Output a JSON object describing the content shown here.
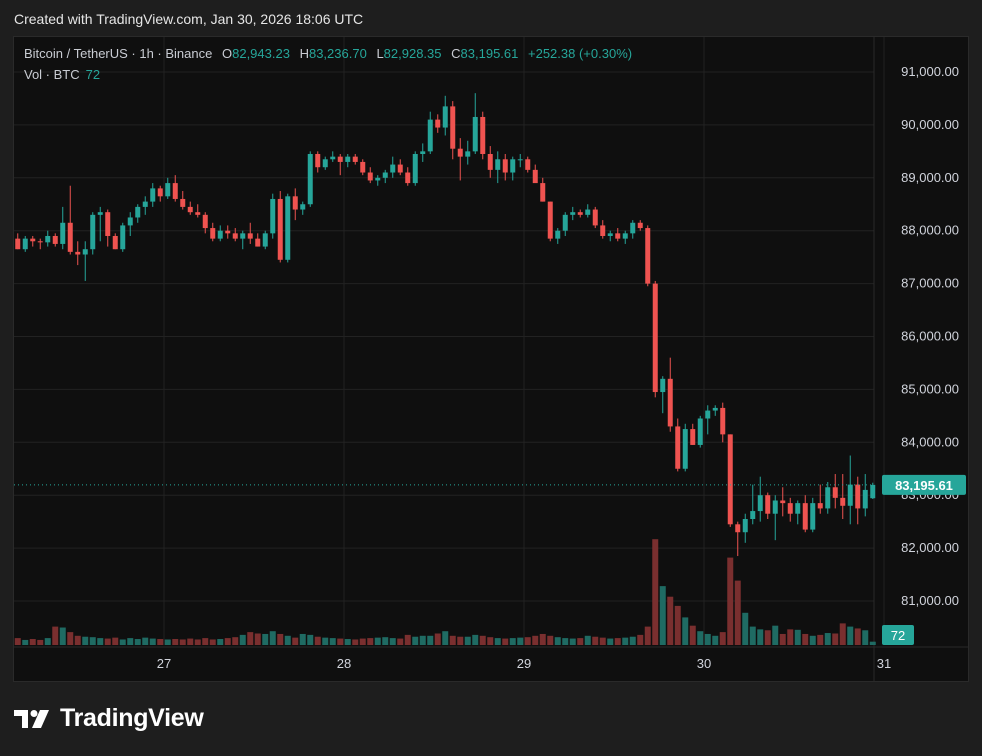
{
  "header": {
    "created_text": "Created with TradingView.com, Jan 30, 2026 18:06 UTC"
  },
  "legend": {
    "symbol": "Bitcoin / TetherUS · 1h · Binance",
    "open_key": "O",
    "open": "82,943.23",
    "high_key": "H",
    "high": "83,236.70",
    "low_key": "L",
    "low": "82,928.35",
    "close_key": "C",
    "close": "83,195.61",
    "change": "+252.38 (+0.30%)",
    "vol_label": "Vol · BTC",
    "vol_value": "72"
  },
  "colors": {
    "up": "#26a69a",
    "down": "#ef5350",
    "up_vol": "#1f6b63",
    "down_vol": "#7a2f2f",
    "grid": "#222222",
    "background": "#0f0f0f"
  },
  "brand": {
    "name": "TradingView",
    "icon": "tradingview-logo-icon"
  },
  "chart_data": {
    "type": "candlestick",
    "title": "Bitcoin / TetherUS · 1h · Binance",
    "ylabel": "",
    "xlabel": "",
    "ylim": [
      80350,
      91600
    ],
    "y_ticks": [
      "91,000.00",
      "90,000.00",
      "89,000.00",
      "88,000.00",
      "87,000.00",
      "86,000.00",
      "85,000.00",
      "84,000.00",
      "83,000.00",
      "82,000.00",
      "81,000.00"
    ],
    "y_tick_values": [
      91000,
      90000,
      89000,
      88000,
      87000,
      86000,
      85000,
      84000,
      83000,
      82000,
      81000
    ],
    "x_ticks": [
      "27",
      "28",
      "29",
      "30",
      "31"
    ],
    "x_tick_values": [
      20,
      44,
      68,
      92,
      116
    ],
    "last_price": "83,195.61",
    "last_price_value": 83195.61,
    "volume_last": "72",
    "grid": true,
    "candles_x_units": "hours since Jan 26 (approx.)",
    "candles": [
      [
        0.5,
        87850,
        87950,
        87650,
        87650,
        150
      ],
      [
        1.5,
        87650,
        87900,
        87600,
        87850,
        110
      ],
      [
        2.5,
        87850,
        87900,
        87700,
        87800,
        130
      ],
      [
        3.5,
        87800,
        87850,
        87650,
        87780,
        110
      ],
      [
        4.5,
        87780,
        88000,
        87700,
        87900,
        150
      ],
      [
        5.5,
        87900,
        87950,
        87700,
        87750,
        400
      ],
      [
        6.5,
        87750,
        88450,
        87650,
        88150,
        380
      ],
      [
        7.5,
        88150,
        88850,
        87550,
        87600,
        280
      ],
      [
        8.5,
        87600,
        87800,
        87350,
        87550,
        200
      ],
      [
        9.5,
        87550,
        87800,
        87050,
        87650,
        180
      ],
      [
        10.5,
        87650,
        88350,
        87550,
        88300,
        170
      ],
      [
        11.5,
        88300,
        88450,
        87800,
        88350,
        150
      ],
      [
        12.5,
        88350,
        88400,
        87700,
        87900,
        140
      ],
      [
        13.5,
        87900,
        87950,
        87650,
        87650,
        160
      ],
      [
        14.5,
        87650,
        88150,
        87600,
        88100,
        120
      ],
      [
        15.5,
        88100,
        88350,
        87900,
        88250,
        150
      ],
      [
        16.5,
        88250,
        88500,
        88150,
        88450,
        130
      ],
      [
        17.5,
        88450,
        88650,
        88300,
        88550,
        160
      ],
      [
        18.5,
        88550,
        88900,
        88450,
        88800,
        140
      ],
      [
        19.5,
        88800,
        88850,
        88550,
        88650,
        130
      ],
      [
        20.5,
        88650,
        89000,
        88600,
        88900,
        120
      ],
      [
        21.5,
        88900,
        89050,
        88550,
        88600,
        130
      ],
      [
        22.5,
        88600,
        88750,
        88400,
        88450,
        120
      ],
      [
        23.5,
        88450,
        88550,
        88300,
        88350,
        140
      ],
      [
        24.5,
        88350,
        88500,
        88250,
        88300,
        120
      ],
      [
        25.5,
        88300,
        88350,
        87950,
        88050,
        150
      ],
      [
        26.5,
        88050,
        88150,
        87800,
        87850,
        120
      ],
      [
        27.5,
        87850,
        88100,
        87800,
        88000,
        130
      ],
      [
        28.5,
        88000,
        88100,
        87850,
        87950,
        150
      ],
      [
        29.5,
        87950,
        88050,
        87800,
        87850,
        170
      ],
      [
        30.5,
        87850,
        88000,
        87650,
        87950,
        220
      ],
      [
        31.5,
        87950,
        88150,
        87750,
        87850,
        280
      ],
      [
        32.5,
        87850,
        87950,
        87700,
        87700,
        250
      ],
      [
        33.5,
        87700,
        88000,
        87650,
        87950,
        240
      ],
      [
        34.5,
        87950,
        88700,
        87850,
        88600,
        300
      ],
      [
        35.5,
        88600,
        88750,
        87400,
        87450,
        240
      ],
      [
        36.5,
        87450,
        88700,
        87400,
        88650,
        200
      ],
      [
        37.5,
        88650,
        88800,
        88200,
        88400,
        160
      ],
      [
        38.5,
        88400,
        88550,
        88300,
        88500,
        240
      ],
      [
        39.5,
        88500,
        89500,
        88450,
        89450,
        220
      ],
      [
        40.5,
        89450,
        89500,
        89100,
        89200,
        180
      ],
      [
        41.5,
        89200,
        89400,
        89150,
        89350,
        160
      ],
      [
        42.5,
        89350,
        89500,
        89300,
        89400,
        150
      ],
      [
        43.5,
        89400,
        89450,
        89050,
        89300,
        140
      ],
      [
        44.5,
        89300,
        89450,
        89200,
        89400,
        130
      ],
      [
        45.5,
        89400,
        89450,
        89250,
        89300,
        120
      ],
      [
        46.5,
        89300,
        89350,
        89050,
        89100,
        140
      ],
      [
        47.5,
        89100,
        89200,
        88900,
        88950,
        150
      ],
      [
        48.5,
        88950,
        89050,
        88850,
        89000,
        160
      ],
      [
        49.5,
        89000,
        89150,
        88900,
        89100,
        170
      ],
      [
        50.5,
        89100,
        89400,
        89000,
        89250,
        150
      ],
      [
        51.5,
        89250,
        89350,
        89050,
        89100,
        140
      ],
      [
        52.5,
        89100,
        89200,
        88850,
        88900,
        220
      ],
      [
        53.5,
        88900,
        89500,
        88850,
        89450,
        180
      ],
      [
        54.5,
        89450,
        89650,
        89300,
        89500,
        200
      ],
      [
        55.5,
        89500,
        90250,
        89450,
        90100,
        200
      ],
      [
        56.5,
        90100,
        90200,
        89850,
        89950,
        250
      ],
      [
        57.5,
        89950,
        90550,
        89800,
        90350,
        300
      ],
      [
        58.5,
        90350,
        90450,
        89350,
        89550,
        200
      ],
      [
        59.5,
        89550,
        89750,
        88950,
        89400,
        180
      ],
      [
        60.5,
        89400,
        89700,
        89250,
        89500,
        180
      ],
      [
        61.5,
        89500,
        90600,
        89450,
        90150,
        220
      ],
      [
        62.5,
        90150,
        90250,
        89350,
        89450,
        200
      ],
      [
        63.5,
        89450,
        89600,
        89000,
        89150,
        170
      ],
      [
        64.5,
        89150,
        89500,
        88900,
        89350,
        150
      ],
      [
        65.5,
        89350,
        89450,
        88950,
        89100,
        140
      ],
      [
        66.5,
        89100,
        89400,
        88950,
        89350,
        150
      ],
      [
        67.5,
        89350,
        89450,
        89200,
        89350,
        160
      ],
      [
        68.5,
        89350,
        89400,
        89100,
        89150,
        170
      ],
      [
        69.5,
        89150,
        89250,
        88950,
        88900,
        200
      ],
      [
        70.5,
        88900,
        89000,
        88550,
        88550,
        240
      ],
      [
        71.5,
        88550,
        88550,
        87800,
        87850,
        200
      ],
      [
        72.5,
        87850,
        88050,
        87750,
        88000,
        170
      ],
      [
        73.5,
        88000,
        88350,
        87900,
        88300,
        150
      ],
      [
        74.5,
        88300,
        88450,
        88200,
        88350,
        140
      ],
      [
        75.5,
        88350,
        88400,
        88250,
        88300,
        150
      ],
      [
        76.5,
        88300,
        88500,
        88250,
        88400,
        200
      ],
      [
        77.5,
        88400,
        88450,
        88050,
        88100,
        180
      ],
      [
        78.5,
        88100,
        88200,
        87850,
        87900,
        160
      ],
      [
        79.5,
        87900,
        88000,
        87800,
        87950,
        140
      ],
      [
        80.5,
        87950,
        88050,
        87800,
        87850,
        150
      ],
      [
        81.5,
        87850,
        88000,
        87750,
        87950,
        160
      ],
      [
        82.5,
        87950,
        88200,
        87850,
        88150,
        180
      ],
      [
        83.5,
        88150,
        88200,
        88000,
        88050,
        220
      ],
      [
        84.5,
        88050,
        88100,
        86950,
        87000,
        400
      ],
      [
        85.5,
        87000,
        87050,
        84850,
        84950,
        2300
      ],
      [
        86.5,
        84950,
        85250,
        84550,
        85200,
        1280
      ],
      [
        87.5,
        85200,
        85600,
        84200,
        84300,
        1050
      ],
      [
        88.5,
        84300,
        84450,
        83450,
        83500,
        850
      ],
      [
        89.5,
        83500,
        84350,
        83450,
        84250,
        600
      ],
      [
        90.5,
        84250,
        84350,
        83950,
        83950,
        420
      ],
      [
        91.5,
        83950,
        84500,
        83900,
        84450,
        300
      ],
      [
        92.5,
        84450,
        84700,
        84150,
        84600,
        240
      ],
      [
        93.5,
        84600,
        84700,
        84500,
        84650,
        200
      ],
      [
        94.5,
        84650,
        84750,
        84000,
        84150,
        280
      ],
      [
        95.5,
        84150,
        84150,
        82400,
        82450,
        1900
      ],
      [
        96.5,
        82450,
        82500,
        81850,
        82300,
        1400
      ],
      [
        97.5,
        82300,
        82650,
        82100,
        82550,
        700
      ],
      [
        98.5,
        82550,
        83200,
        82450,
        82700,
        400
      ],
      [
        99.5,
        82700,
        83350,
        82500,
        83000,
        340
      ],
      [
        100.5,
        83000,
        83050,
        82550,
        82650,
        320
      ],
      [
        101.5,
        82650,
        83000,
        82150,
        82900,
        420
      ],
      [
        102.5,
        82900,
        83150,
        82600,
        82850,
        240
      ],
      [
        103.5,
        82850,
        82950,
        82500,
        82650,
        340
      ],
      [
        104.5,
        82650,
        82900,
        82450,
        82850,
        330
      ],
      [
        105.5,
        82850,
        83000,
        82300,
        82350,
        240
      ],
      [
        106.5,
        82350,
        82950,
        82300,
        82850,
        200
      ],
      [
        107.5,
        82850,
        83200,
        82650,
        82750,
        220
      ],
      [
        108.5,
        82750,
        83250,
        82650,
        83150,
        260
      ],
      [
        109.5,
        83150,
        83400,
        82750,
        82950,
        250
      ],
      [
        110.5,
        82950,
        83400,
        82550,
        82800,
        470
      ],
      [
        111.5,
        82800,
        83750,
        82450,
        83200,
        400
      ],
      [
        112.5,
        83200,
        83350,
        82450,
        82750,
        360
      ],
      [
        113.5,
        82750,
        83400,
        82600,
        83100,
        320
      ],
      [
        114.5,
        82943,
        83236,
        82928,
        83195,
        72
      ]
    ]
  }
}
